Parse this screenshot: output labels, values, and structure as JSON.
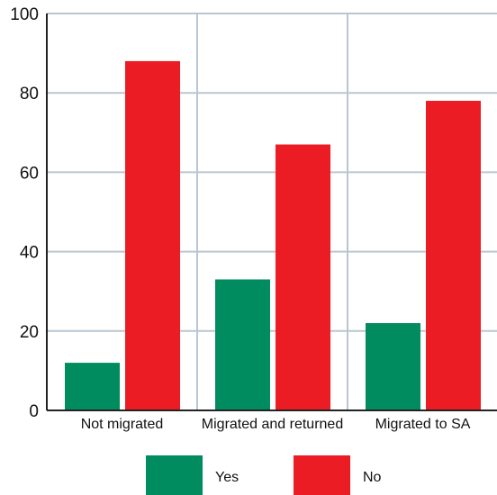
{
  "chart_data": {
    "type": "bar",
    "categories": [
      "Not migrated",
      "Migrated and returned",
      "Migrated to SA"
    ],
    "series": [
      {
        "name": "Yes",
        "values": [
          12,
          33,
          22
        ],
        "color": "#008c5f"
      },
      {
        "name": "No",
        "values": [
          88,
          67,
          78
        ],
        "color": "#ec1c24"
      }
    ],
    "ylim": [
      0,
      100
    ],
    "yticks": [
      0,
      20,
      40,
      60,
      80,
      100
    ],
    "grid": true,
    "grid_color": "#b9c6d2",
    "legend_position": "bottom-center"
  }
}
